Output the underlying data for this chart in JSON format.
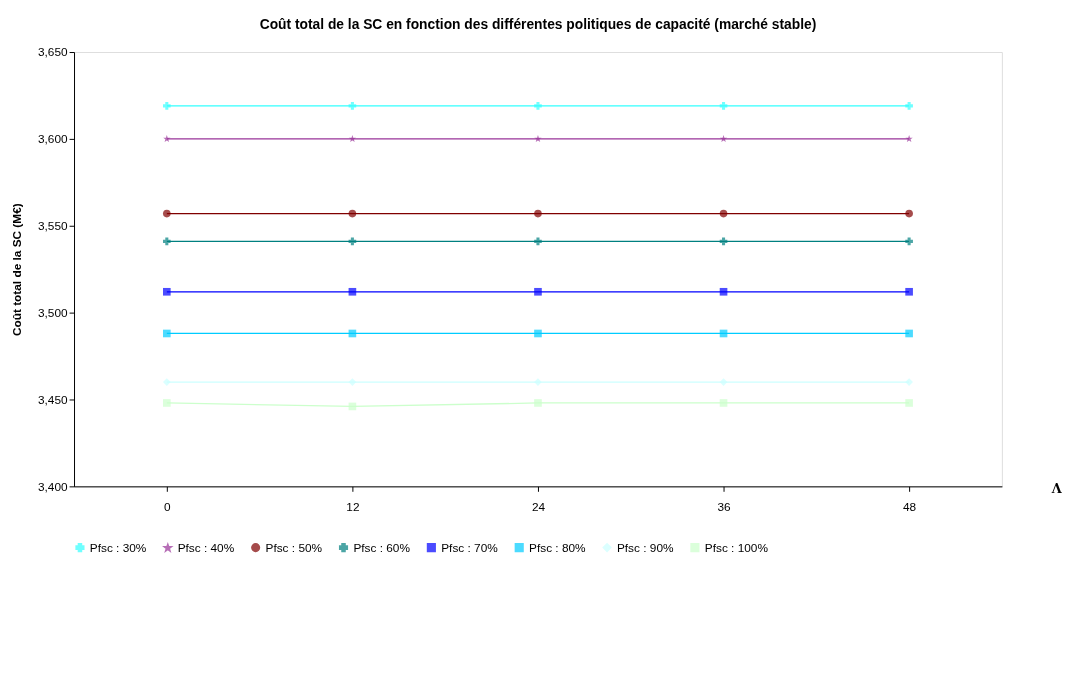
{
  "chart_data": {
    "type": "line",
    "title": "Coût total de la SC en fonction des différentes politiques de capacité (marché stable)",
    "xlabel": "Λ",
    "ylabel": "Coût total de la SC (M€)",
    "categories": [
      "0",
      "12",
      "24",
      "36",
      "48"
    ],
    "ylim": [
      3400,
      3650
    ],
    "yticks": [
      {
        "value": 3400,
        "label": "3,400"
      },
      {
        "value": 3450,
        "label": "3,450"
      },
      {
        "value": 3500,
        "label": "3,500"
      },
      {
        "value": 3550,
        "label": "3,550"
      },
      {
        "value": 3600,
        "label": "3,600"
      },
      {
        "value": 3650,
        "label": "3,650"
      }
    ],
    "grid": false,
    "legend": "bottom",
    "line_style": "solid",
    "series": [
      {
        "name": "Pfsc : 30%",
        "color": "#33ffff",
        "marker": "cross",
        "values": [
          3619,
          3619,
          3619,
          3619,
          3619
        ]
      },
      {
        "name": "Pfsc : 40%",
        "color": "#993399",
        "marker": "star",
        "values": [
          3600,
          3600,
          3600,
          3600,
          3600
        ]
      },
      {
        "name": "Pfsc : 50%",
        "color": "#800000",
        "marker": "circle",
        "values": [
          3557,
          3557,
          3557,
          3557,
          3557
        ]
      },
      {
        "name": "Pfsc : 60%",
        "color": "#008080",
        "marker": "cross",
        "values": [
          3541,
          3541,
          3541,
          3541,
          3541
        ]
      },
      {
        "name": "Pfsc : 70%",
        "color": "#0000ff",
        "marker": "square",
        "values": [
          3512,
          3512,
          3512,
          3512,
          3512
        ]
      },
      {
        "name": "Pfsc : 80%",
        "color": "#00ccff",
        "marker": "square",
        "values": [
          3488,
          3488,
          3488,
          3488,
          3488
        ]
      },
      {
        "name": "Pfsc : 90%",
        "color": "#ccffff",
        "marker": "diamond",
        "values": [
          3460,
          3460,
          3460,
          3460,
          3460
        ]
      },
      {
        "name": "Pfsc : 100%",
        "color": "#ccffcc",
        "marker": "square",
        "values": [
          3448,
          3446,
          3448,
          3448,
          3448
        ]
      }
    ]
  }
}
